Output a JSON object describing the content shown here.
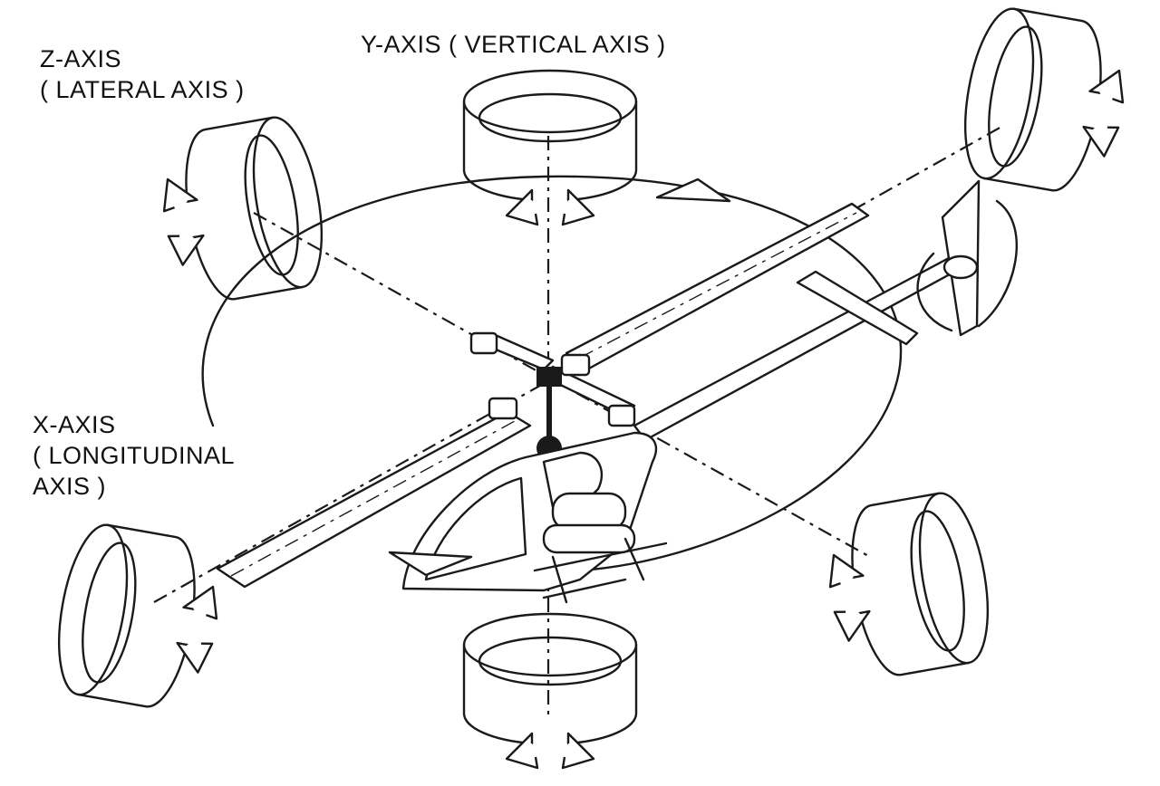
{
  "labels": {
    "y_axis": "Y-AXIS ( VERTICAL AXIS )",
    "z_axis_line1": "Z-AXIS",
    "z_axis_line2": "( LATERAL AXIS )",
    "x_axis_line1": "X-AXIS",
    "x_axis_line2": "( LONGITUDINAL",
    "x_axis_line3": "AXIS )"
  },
  "colors": {
    "ink": "#1a1a1a",
    "background": "#ffffff"
  }
}
